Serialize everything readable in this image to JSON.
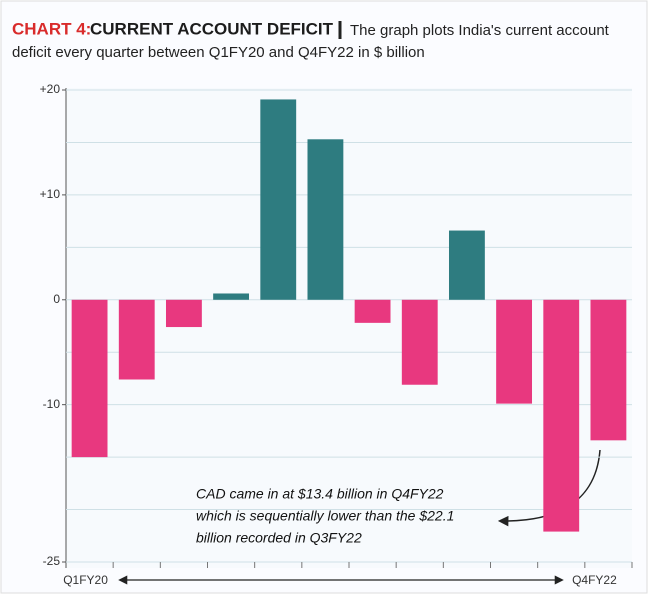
{
  "chart_data": {
    "type": "bar",
    "title_lead": "CHART 4:",
    "title": "CURRENT ACCOUNT DEFICIT",
    "subtitle": [
      "The graph plots India's current account",
      "deficit every quarter between Q1FY20 and Q4FY22 in $ billion"
    ],
    "categories": [
      "Q1FY20",
      null,
      null,
      null,
      null,
      null,
      null,
      null,
      null,
      null,
      null,
      "Q4FY22"
    ],
    "values": [
      -15.0,
      -7.6,
      -2.6,
      0.6,
      19.1,
      15.3,
      -2.2,
      -8.1,
      6.6,
      -9.9,
      -22.1,
      -13.4
    ],
    "positive_color": "#2e7c80",
    "negative_color": "#e8387f",
    "ylim": [
      -25,
      20
    ],
    "yticks": [
      {
        "value": 20,
        "label": "+20"
      },
      {
        "value": 10,
        "label": "+10"
      },
      0,
      -10,
      -25
    ],
    "ygrid": [
      15,
      5,
      -5,
      -15,
      -20
    ],
    "grid": true,
    "annotation": [
      "CAD came in at $13.4 billion in Q4FY22",
      "which is sequentially lower than the $22.1",
      "billion recorded in Q3FY22"
    ]
  }
}
